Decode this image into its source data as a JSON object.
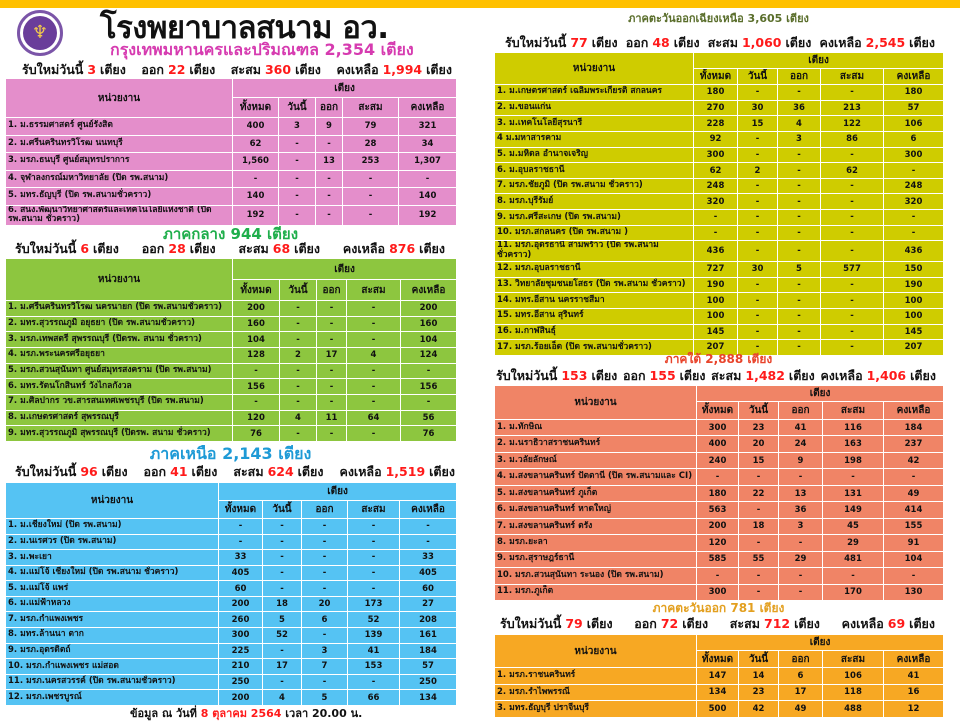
{
  "title": "โรงพยาบาลสนาม อว.",
  "logo_icon": "university-emblem-icon",
  "labels": {
    "new_today": "รับใหม่วันนี้",
    "out": "ออก",
    "accum": "สะสม",
    "remain": "คงเหลือ",
    "unit": "เตียง"
  },
  "table_headers": {
    "unit_col": "หน่วยงาน",
    "beds": "เตียง",
    "total": "ทั้งหมด",
    "today": "วันนี้",
    "out": "ออก",
    "accum": "สะสม",
    "remain": "คงเหลือ"
  },
  "footer": {
    "prefix": "ข้อมูล ณ วันที่",
    "day": "8",
    "month": "ตุลาคม",
    "year": "2564",
    "time": "เวลา 20.00 น."
  },
  "sections": {
    "bangkok": {
      "title": "กรุงเทพมหานครและปริมณฑล  2,354 เตียง",
      "title_color": "#d63bb0",
      "table_color": "#e48ecb",
      "summary": {
        "new_today": "3",
        "out": "22",
        "accum": "360",
        "remain": "1,994"
      },
      "rows": [
        [
          "1. ม.ธรรมศาสตร์ ศูนย์รังสิต",
          "400",
          "3",
          "9",
          "79",
          "321"
        ],
        [
          "2. ม.ศรีนครินทรวิโรฒ นนทบุรี",
          "62",
          "-",
          "-",
          "28",
          "34"
        ],
        [
          "3. มรภ.ธนบุรี ศูนย์สมุทรปราการ",
          "1,560",
          "-",
          "13",
          "253",
          "1,307"
        ],
        [
          "4. จุฬาลงกรณ์มหาวิทยาลัย  (ปิด รพ.สนาม)",
          "-",
          "-",
          "-",
          "-",
          "-"
        ],
        [
          "5. มทร.ธัญบุรี (ปิด รพ.สนามชั่วคราว)",
          "140",
          "-",
          "-",
          "-",
          "140"
        ],
        [
          "6. สนง.พัฒนาวิทยาศาสตร์และเทคโนโลยีแห่งชาติ (ปิด รพ.สนาม ชั่วคราว)",
          "192",
          "-",
          "-",
          "-",
          "192"
        ]
      ]
    },
    "central": {
      "title": "ภาคกลาง  944 เตียง",
      "title_color": "#1fae4b",
      "table_color": "#8dc63f",
      "summary": {
        "new_today": "6",
        "out": "28",
        "accum": "68",
        "remain": "876"
      },
      "rows": [
        [
          "1. ม.ศรีนครินทรวิโรฒ นครนายก  (ปิด รพ.สนามชั่วคราว)",
          "200",
          "-",
          "-",
          "-",
          "200"
        ],
        [
          "2. มทร.สุวรรณภูมิ อยุธยา  (ปิด รพ.สนามชั่วคราว)",
          "160",
          "-",
          "-",
          "-",
          "160"
        ],
        [
          "3. มรภ.เทพสตรี สุพรรณบุรี (ปิดรพ. สนาม ชั่วคราว)",
          "104",
          "-",
          "-",
          "-",
          "104"
        ],
        [
          "4. มรภ.พระนครศรีอยุธยา",
          "128",
          "2",
          "17",
          "4",
          "124"
        ],
        [
          "5. มรภ.สวนสุนันทา ศูนย์สมุทรสงคราม  (ปิด รพ.สนาม)",
          "-",
          "-",
          "-",
          "-",
          "-"
        ],
        [
          "6. มทร.รัตนโกสินทร์  วังไกลกังวล",
          "156",
          "-",
          "-",
          "-",
          "156"
        ],
        [
          "7. ม.ศิลปากร วข.สารสนเทศเพชรบุรี  (ปิด รพ.สนาม)",
          "-",
          "-",
          "-",
          "-",
          "-"
        ],
        [
          "8. ม.เกษตรศาสตร์  สุพรรณบุรี",
          "120",
          "4",
          "11",
          "64",
          "56"
        ],
        [
          "9. มทร.สุวรรณภูมิ  สุพรรณบุรี (ปิดรพ. สนาม ชั่วคราว)",
          "76",
          "-",
          "-",
          "-",
          "76"
        ]
      ]
    },
    "north": {
      "title": "ภาคเหนือ  2,143 เตียง",
      "title_color": "#1e9ad6",
      "table_color": "#55c3f3",
      "summary": {
        "new_today": "96",
        "out": "41",
        "accum": "624",
        "remain": "1,519"
      },
      "rows": [
        [
          "1. ม.เชียงใหม่  (ปิด รพ.สนาม)",
          "-",
          "-",
          "-",
          "-",
          "-"
        ],
        [
          "2. ม.นเรศวร (ปิด รพ.สนาม)",
          "-",
          "-",
          "-",
          "-",
          "-"
        ],
        [
          "3. ม.พะเยา",
          "33",
          "-",
          "-",
          "-",
          "33"
        ],
        [
          "4. ม.แม่โจ้ เชียงใหม่ (ปิด รพ.สนาม ชั่วคราว)",
          "405",
          "-",
          "-",
          "-",
          "405"
        ],
        [
          "5. ม.แม่โจ้ แพร่",
          "60",
          "-",
          "-",
          "-",
          "60"
        ],
        [
          "6. ม.แม่ฟ้าหลวง",
          "200",
          "18",
          "20",
          "173",
          "27"
        ],
        [
          "7. มรภ.กำแพงเพชร",
          "260",
          "5",
          "6",
          "52",
          "208"
        ],
        [
          "8. มทร.ล้านนา ตาก",
          "300",
          "52",
          "-",
          "139",
          "161"
        ],
        [
          "9. มรภ.อุตรดิตถ์",
          "225",
          "-",
          "3",
          "41",
          "184"
        ],
        [
          "10. มรภ.กำแพงเพชร แม่สอด",
          "210",
          "17",
          "7",
          "153",
          "57"
        ],
        [
          "11. มรภ.นครสวรรค์ (ปิด รพ.สนามชั่วคราว)",
          "250",
          "-",
          "-",
          "-",
          "250"
        ],
        [
          "12. มรภ.เพชรบูรณ์",
          "200",
          "4",
          "5",
          "66",
          "134"
        ]
      ]
    },
    "northeast": {
      "title": "ภาคตะวันออกเฉียงเหนือ  3,605 เตียง",
      "title_color": "#5a6e2b",
      "table_color": "#cfcc00",
      "summary": {
        "new_today": "77",
        "out": "48",
        "accum": "1,060",
        "remain": "2,545"
      },
      "rows": [
        [
          "1. ม.เกษตรศาสตร์ เฉลิมพระเกียรติ สกลนคร",
          "180",
          "-",
          "-",
          "-",
          "180"
        ],
        [
          "2. ม.ขอนแก่น",
          "270",
          "30",
          "36",
          "213",
          "57"
        ],
        [
          "3. ม.เทคโนโลยีสุรนารี",
          "228",
          "15",
          "4",
          "122",
          "106"
        ],
        [
          "4 ม.มหาสารคาม",
          "92",
          "-",
          "3",
          "86",
          "6"
        ],
        [
          "5. ม.มหิดล อำนาจเจริญ",
          "300",
          "-",
          "-",
          "-",
          "300"
        ],
        [
          "6. ม.อุบลราชธานี",
          "62",
          "2",
          "-",
          "62",
          "-"
        ],
        [
          "7. มรภ.ชัยภูมิ   (ปิด รพ.สนาม ชั่วคราว)",
          "248",
          "-",
          "-",
          "-",
          "248"
        ],
        [
          "8. มรภ.บุรีรัมย์",
          "320",
          "-",
          "-",
          "-",
          "320"
        ],
        [
          "9. มรภ.ศรีสะเกษ  (ปิด รพ.สนาม)",
          "-",
          "-",
          "-",
          "-",
          "-"
        ],
        [
          "10. มรภ.สกลนคร  (ปิด รพ.สนาม )",
          "-",
          "-",
          "-",
          "-",
          "-"
        ],
        [
          "11. มรภ.อุดรธานี  สามพร้าว (ปิด รพ.สนาม ชั่วคราว)",
          "436",
          "-",
          "-",
          "-",
          "436"
        ],
        [
          "12. มรภ.อุบลราชธานี",
          "727",
          "30",
          "5",
          "577",
          "150"
        ],
        [
          "13. วิทยาลัยชุมชนยโสธร  (ปิด รพ.สนาม ชั่วคราว)",
          "190",
          "-",
          "-",
          "-",
          "190"
        ],
        [
          "14. มทร.อีสาน  นครราชสีมา",
          "100",
          "-",
          "-",
          "-",
          "100"
        ],
        [
          "15. มทร.อีสาน  สุรินทร์",
          "100",
          "-",
          "-",
          "-",
          "100"
        ],
        [
          "16. ม.กาฬสินธุ์",
          "145",
          "-",
          "-",
          "-",
          "145"
        ],
        [
          "17. มรภ.ร้อยเอ็ด  (ปิด รพ.สนามชั่วคราว)",
          "207",
          "-",
          "-",
          "-",
          "207"
        ]
      ]
    },
    "south": {
      "title": "ภาคใต้  2,888 เตียง",
      "title_color": "#e8432a",
      "table_color": "#f08466",
      "summary": {
        "new_today": "153",
        "out": "155",
        "accum": "1,482",
        "remain": "1,406"
      },
      "rows": [
        [
          "1. ม.ทักษิณ",
          "300",
          "23",
          "41",
          "116",
          "184"
        ],
        [
          "2. ม.นราธิวาสราชนครินทร์",
          "400",
          "20",
          "24",
          "163",
          "237"
        ],
        [
          "3. ม.วลัยลักษณ์",
          "240",
          "15",
          "9",
          "198",
          "42"
        ],
        [
          "4. ม.สงขลานครินทร์ ปัตตานี  (ปิด รพ.สนามและ CI)",
          "-",
          "-",
          "-",
          "-",
          "-"
        ],
        [
          "5. ม.สงขลานครินทร์ ภูเก็ต",
          "180",
          "22",
          "13",
          "131",
          "49"
        ],
        [
          "6. ม.สงขลานครินทร์ หาดใหญ่",
          "563",
          "-",
          "36",
          "149",
          "414"
        ],
        [
          "7. ม.สงขลานครินทร์ ตรัง",
          "200",
          "18",
          "3",
          "45",
          "155"
        ],
        [
          "8. มรภ.ยะลา",
          "120",
          "-",
          "-",
          "29",
          "91"
        ],
        [
          "9. มรภ.สุราษฎร์ธานี",
          "585",
          "55",
          "29",
          "481",
          "104"
        ],
        [
          "10.  มรภ.สวนสุนันทา ระนอง (ปิด รพ.สนาม)",
          "-",
          "-",
          "-",
          "-",
          "-"
        ],
        [
          "11.  มรภ.ภูเก็ต",
          "300",
          "-",
          "-",
          "170",
          "130"
        ]
      ]
    },
    "east": {
      "title": "ภาคตะวันออก  781  เตียง",
      "title_color": "#e3a020",
      "table_color": "#f7a823",
      "summary": {
        "new_today": "79",
        "out": "72",
        "accum": "712",
        "remain": "69"
      },
      "rows": [
        [
          "1. มรภ.ราชนครินทร์",
          "147",
          "14",
          "6",
          "106",
          "41"
        ],
        [
          "2. มรภ.รำไพพรรณี",
          "134",
          "23",
          "17",
          "118",
          "16"
        ],
        [
          "3. มทร.ธัญบุรี  ปราจีนบุรี",
          "500",
          "42",
          "49",
          "488",
          "12"
        ]
      ]
    }
  }
}
